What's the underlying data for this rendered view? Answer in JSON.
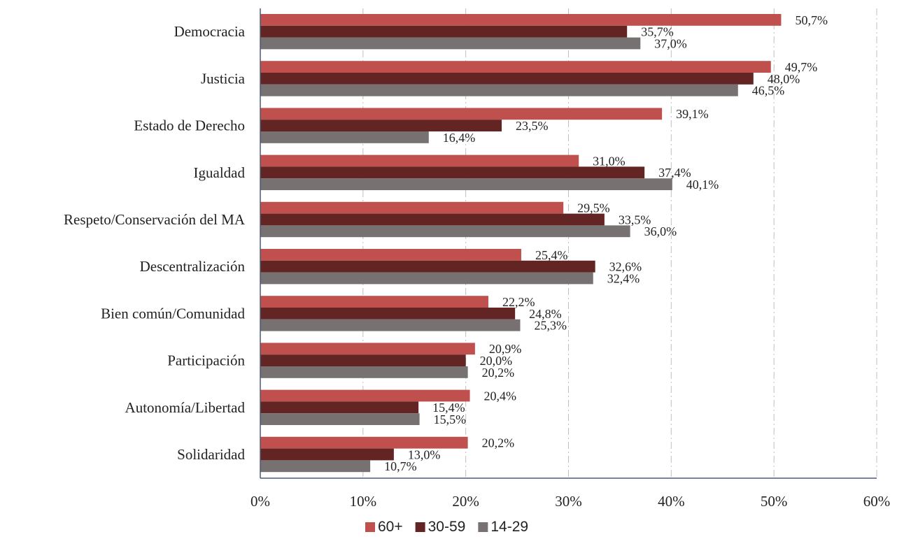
{
  "chart_data": {
    "type": "bar",
    "orientation": "horizontal",
    "title": "",
    "xlabel": "",
    "ylabel": "",
    "xlim": [
      0,
      60
    ],
    "x_ticks": [
      "0%",
      "10%",
      "20%",
      "30%",
      "40%",
      "50%",
      "60%"
    ],
    "grid": "vertical dash-dot lines",
    "legend_position": "bottom-center",
    "categories": [
      "Democracia",
      "Justicia",
      "Estado de Derecho",
      "Igualdad",
      "Respeto/Conservación del MA",
      "Descentralización",
      "Bien común/Comunidad",
      "Participación",
      "Autonomía/Libertad",
      "Solidaridad"
    ],
    "series": [
      {
        "name": "60+",
        "color": "#c0504d",
        "values": [
          50.7,
          49.7,
          39.1,
          31.0,
          29.5,
          25.4,
          22.2,
          20.9,
          20.4,
          20.2
        ],
        "labels": [
          "50,7%",
          "49,7%",
          "39,1%",
          "31,0%",
          "29,5%",
          "25,4%",
          "22,2%",
          "20,9%",
          "20,4%",
          "20,2%"
        ]
      },
      {
        "name": "30-59",
        "color": "#632523",
        "values": [
          35.7,
          48.0,
          23.5,
          37.4,
          33.5,
          32.6,
          24.8,
          20.0,
          15.4,
          13.0
        ],
        "labels": [
          "35,7%",
          "48,0%",
          "23,5%",
          "37,4%",
          "33,5%",
          "32,6%",
          "24,8%",
          "20,0%",
          "15,4%",
          "13,0%"
        ]
      },
      {
        "name": "14-29",
        "color": "#777171",
        "values": [
          37.0,
          46.5,
          16.4,
          40.1,
          36.0,
          32.4,
          25.3,
          20.2,
          15.5,
          10.7
        ],
        "labels": [
          "37,0%",
          "46,5%",
          "16,4%",
          "40,1%",
          "36,0%",
          "32,4%",
          "25,3%",
          "20,2%",
          "15,5%",
          "10,7%"
        ]
      }
    ]
  }
}
